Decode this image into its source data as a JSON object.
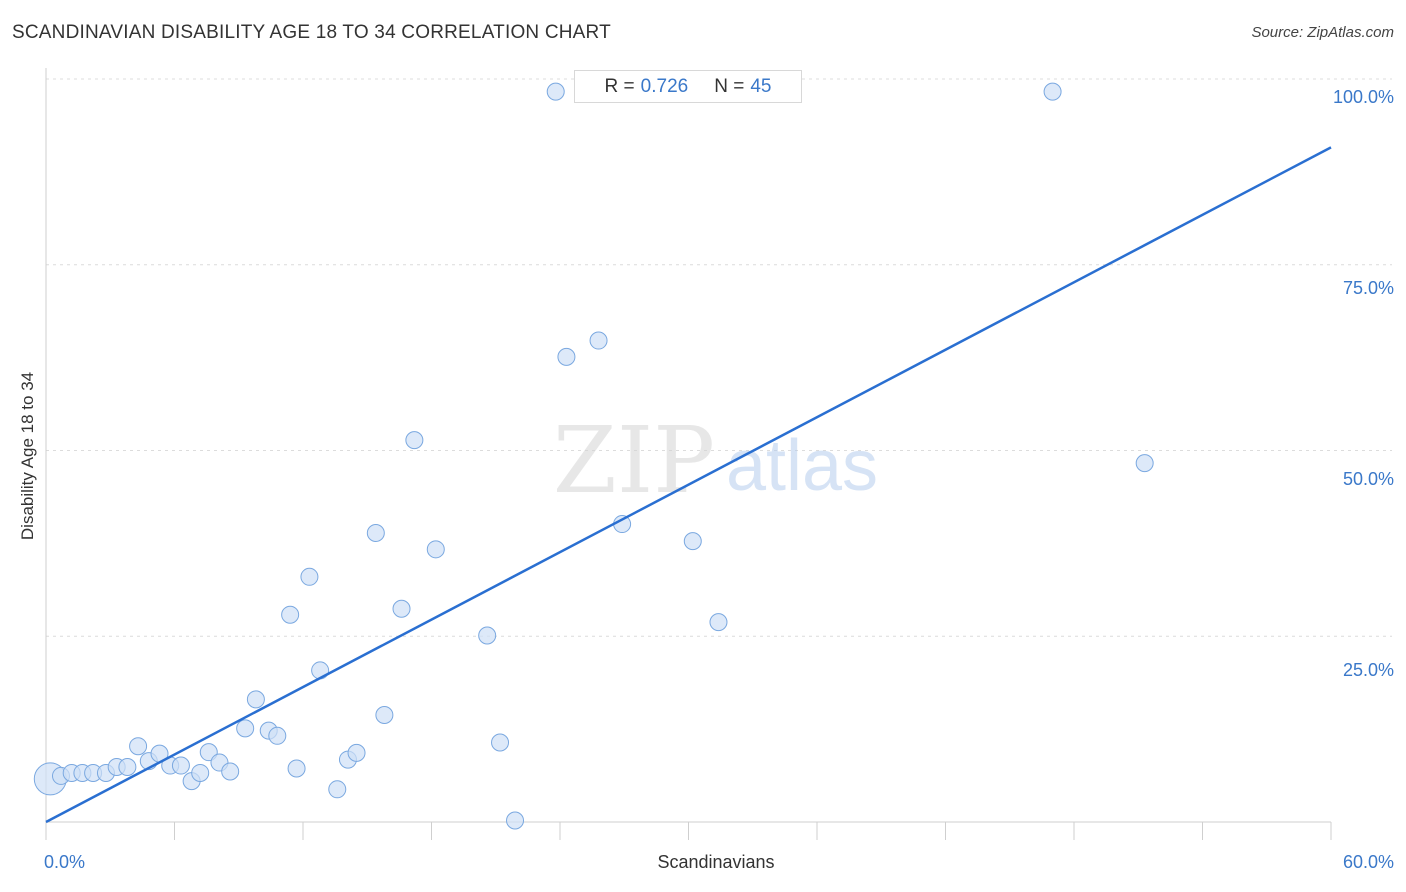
{
  "title": "SCANDINAVIAN DISABILITY AGE 18 TO 34 CORRELATION CHART",
  "source": "Source: ZipAtlas.com",
  "stats": {
    "r_label": "R =",
    "r_value": "0.726",
    "n_label": "N =",
    "n_value": "45"
  },
  "watermark": {
    "zip": "ZIP",
    "atlas": "atlas"
  },
  "colors": {
    "point_fill": "#cfe0f6",
    "point_stroke": "#7aa8e0",
    "trend": "#2a6fd1",
    "tick_text": "#3a78c9",
    "grid": "#dcdcdc"
  },
  "chart_data": {
    "type": "scatter",
    "title": "SCANDINAVIAN DISABILITY AGE 18 TO 34 CORRELATION CHART",
    "xlabel": "Scandinavians",
    "ylabel": "Disability Age 18 to 34",
    "xlim": [
      0,
      60
    ],
    "ylim": [
      0,
      100
    ],
    "x_tick_labels": [
      "0.0%",
      "60.0%"
    ],
    "y_tick_labels": [
      "100.0%",
      "75.0%",
      "50.0%",
      "25.0%"
    ],
    "y_ticks": [
      100,
      75,
      50,
      25
    ],
    "grid": true,
    "trendline": {
      "x": [
        0,
        60
      ],
      "y": [
        0,
        90.8
      ]
    },
    "points": [
      {
        "x": 0.2,
        "y": 5.8,
        "big": true
      },
      {
        "x": 0.7,
        "y": 6.2
      },
      {
        "x": 1.2,
        "y": 6.6
      },
      {
        "x": 1.7,
        "y": 6.6
      },
      {
        "x": 2.2,
        "y": 6.6
      },
      {
        "x": 2.8,
        "y": 6.6
      },
      {
        "x": 3.3,
        "y": 7.4
      },
      {
        "x": 3.8,
        "y": 7.4
      },
      {
        "x": 4.3,
        "y": 10.2
      },
      {
        "x": 4.8,
        "y": 8.2
      },
      {
        "x": 5.3,
        "y": 9.2
      },
      {
        "x": 5.8,
        "y": 7.6
      },
      {
        "x": 6.3,
        "y": 7.6
      },
      {
        "x": 6.8,
        "y": 5.5
      },
      {
        "x": 7.2,
        "y": 6.6
      },
      {
        "x": 7.6,
        "y": 9.4
      },
      {
        "x": 8.1,
        "y": 8.0
      },
      {
        "x": 8.6,
        "y": 6.8
      },
      {
        "x": 9.3,
        "y": 12.6
      },
      {
        "x": 9.8,
        "y": 16.5
      },
      {
        "x": 10.4,
        "y": 12.3
      },
      {
        "x": 10.8,
        "y": 11.6
      },
      {
        "x": 11.4,
        "y": 27.9
      },
      {
        "x": 11.7,
        "y": 7.2
      },
      {
        "x": 12.3,
        "y": 33.0
      },
      {
        "x": 12.8,
        "y": 20.4
      },
      {
        "x": 13.6,
        "y": 4.4
      },
      {
        "x": 14.1,
        "y": 8.4
      },
      {
        "x": 14.5,
        "y": 9.3
      },
      {
        "x": 15.4,
        "y": 38.9
      },
      {
        "x": 15.8,
        "y": 14.4
      },
      {
        "x": 16.6,
        "y": 28.7
      },
      {
        "x": 17.2,
        "y": 51.4
      },
      {
        "x": 18.2,
        "y": 36.7
      },
      {
        "x": 20.6,
        "y": 25.1
      },
      {
        "x": 21.2,
        "y": 10.7
      },
      {
        "x": 21.9,
        "y": 0.2
      },
      {
        "x": 23.8,
        "y": 98.3
      },
      {
        "x": 24.3,
        "y": 62.6
      },
      {
        "x": 25.8,
        "y": 64.8
      },
      {
        "x": 26.9,
        "y": 40.1
      },
      {
        "x": 30.2,
        "y": 37.8
      },
      {
        "x": 31.4,
        "y": 26.9
      },
      {
        "x": 47.0,
        "y": 98.3
      },
      {
        "x": 51.3,
        "y": 48.3
      }
    ]
  }
}
